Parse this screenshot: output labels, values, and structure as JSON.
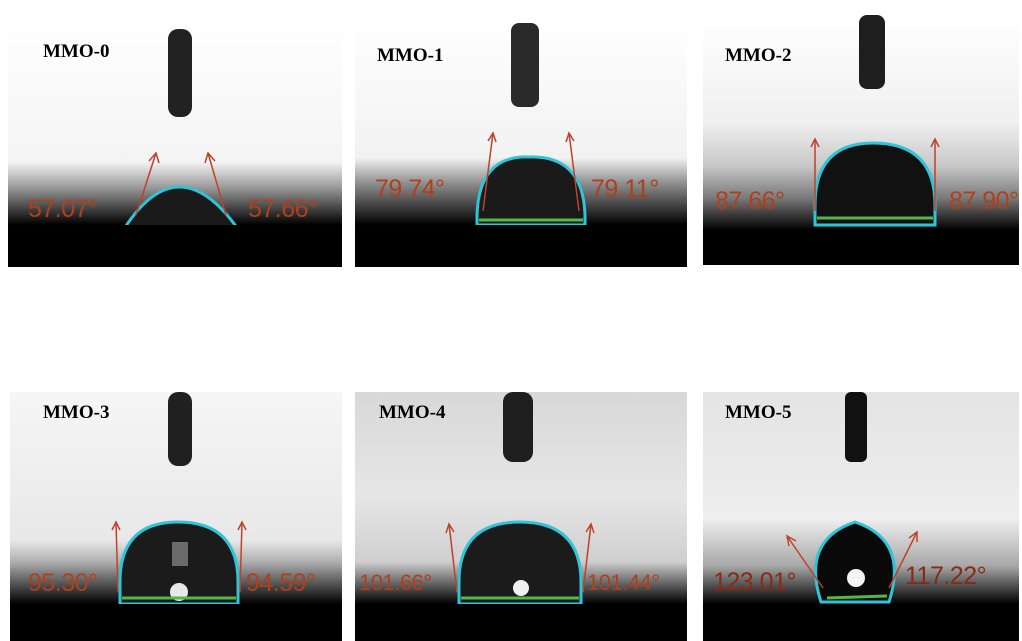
{
  "colors": {
    "angle_text": "#b0401c",
    "drop_outline": "#2fc4d6",
    "baseline": "#53b84a",
    "arrow": "#c0412a"
  },
  "panels": [
    {
      "label": "MMO-0",
      "left_angle": "57.07°",
      "right_angle": "57.66°"
    },
    {
      "label": "MMO-1",
      "left_angle": "79.74°",
      "right_angle": "79.11°"
    },
    {
      "label": "MMO-2",
      "left_angle": "87.66°",
      "right_angle": "87.90°"
    },
    {
      "label": "MMO-3",
      "left_angle": "95.30°",
      "right_angle": "94.59°"
    },
    {
      "label": "MMO-4",
      "left_angle": "101.66°",
      "right_angle": "101.44°"
    },
    {
      "label": "MMO-5",
      "left_angle": "123.01°",
      "right_angle": "117.22°"
    }
  ]
}
